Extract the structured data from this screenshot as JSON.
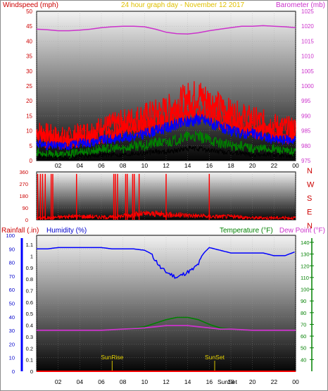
{
  "chart_data": [
    {
      "type": "line",
      "title": "24 hour graph day - November 12 2017",
      "left_label": "Windspeed (mph)",
      "right_label": "Barometer (mb)",
      "x_ticks": [
        "02",
        "04",
        "06",
        "08",
        "10",
        "12",
        "14",
        "16",
        "18",
        "20",
        "22",
        "00"
      ],
      "left_ticks": [
        "0",
        "5",
        "10",
        "15",
        "20",
        "25",
        "30",
        "35",
        "40",
        "45",
        "50"
      ],
      "right_ticks": [
        "975",
        "980",
        "985",
        "990",
        "995",
        "1000",
        "1005",
        "1010",
        "1015",
        "1020",
        "1025"
      ],
      "ylim": [
        0,
        50
      ],
      "y2lim": [
        975,
        1025
      ],
      "series": [
        {
          "color": "#ff0000",
          "axis": "left",
          "x": [
            0,
            1,
            2,
            3,
            4,
            5,
            6,
            7,
            8,
            9,
            10,
            11,
            12,
            13,
            14,
            15,
            16,
            17,
            18,
            19,
            20,
            21,
            22,
            23,
            24
          ],
          "values": [
            10,
            9,
            8,
            8,
            9,
            10,
            11,
            12,
            13,
            14,
            15,
            16,
            17,
            19,
            21,
            22,
            20,
            18,
            16,
            15,
            14,
            13,
            12,
            11,
            11
          ]
        },
        {
          "color": "#0000ff",
          "axis": "left",
          "x": [
            0,
            1,
            2,
            3,
            4,
            5,
            6,
            7,
            8,
            9,
            10,
            11,
            12,
            13,
            14,
            15,
            16,
            17,
            18,
            19,
            20,
            21,
            22,
            23,
            24
          ],
          "values": [
            6,
            5,
            5,
            5,
            6,
            6,
            7,
            7,
            8,
            8,
            9,
            10,
            11,
            12,
            13,
            14,
            13,
            11,
            10,
            9,
            9,
            8,
            7,
            7,
            7
          ]
        },
        {
          "color": "#008000",
          "axis": "left",
          "x": [
            0,
            1,
            2,
            3,
            4,
            5,
            6,
            7,
            8,
            9,
            10,
            11,
            12,
            13,
            14,
            15,
            16,
            17,
            18,
            19,
            20,
            21,
            22,
            23,
            24
          ],
          "values": [
            3,
            2,
            2,
            2,
            3,
            3,
            4,
            4,
            4,
            5,
            5,
            6,
            6,
            7,
            8,
            8,
            7,
            6,
            5,
            5,
            4,
            4,
            4,
            3,
            3
          ]
        },
        {
          "color": "#cc33cc",
          "axis": "right",
          "x": [
            0,
            1,
            2,
            3,
            4,
            5,
            6,
            7,
            8,
            9,
            10,
            11,
            12,
            13,
            14,
            15,
            16,
            17,
            18,
            19,
            20,
            21,
            22,
            23,
            24
          ],
          "values": [
            1019.0,
            1018.8,
            1018.5,
            1018.5,
            1018.7,
            1019.0,
            1019.5,
            1019.8,
            1020.0,
            1020.0,
            1019.8,
            1019.0,
            1018.0,
            1017.5,
            1017.4,
            1017.8,
            1018.5,
            1019.0,
            1019.5,
            1020.0,
            1020.0,
            1020.2,
            1020.0,
            1019.8,
            1019.5
          ]
        }
      ]
    },
    {
      "type": "bar",
      "right_labels": [
        "N",
        "W",
        "S",
        "E",
        "N"
      ],
      "left_ticks": [
        "360",
        "270",
        "180",
        "90",
        "0"
      ],
      "ylim": [
        0,
        360
      ],
      "color": "#ff0000",
      "spikes": [
        {
          "x": 0.1,
          "value": 345
        },
        {
          "x": 0.35,
          "value": 345
        },
        {
          "x": 0.55,
          "value": 345
        },
        {
          "x": 0.8,
          "value": 345
        },
        {
          "x": 1.35,
          "value": 345
        },
        {
          "x": 1.5,
          "value": 345
        },
        {
          "x": 3.7,
          "value": 345
        },
        {
          "x": 7.15,
          "value": 345
        },
        {
          "x": 7.3,
          "value": 345
        },
        {
          "x": 7.5,
          "value": 345
        },
        {
          "x": 8.25,
          "value": 345
        },
        {
          "x": 8.4,
          "value": 345
        },
        {
          "x": 8.9,
          "value": 345
        },
        {
          "x": 9.05,
          "value": 345
        },
        {
          "x": 9.5,
          "value": 345
        },
        {
          "x": 12.0,
          "value": 345
        },
        {
          "x": 16.0,
          "value": 345
        }
      ],
      "baseline": {
        "x": [
          0,
          1,
          2,
          3,
          4,
          5,
          6,
          7,
          8,
          9,
          10,
          11,
          12,
          13,
          14,
          15,
          16,
          17,
          18,
          19,
          20,
          21,
          22,
          23,
          24
        ],
        "values": [
          15,
          15,
          20,
          25,
          25,
          25,
          20,
          20,
          30,
          40,
          45,
          45,
          40,
          35,
          35,
          30,
          25,
          25,
          25,
          20,
          15,
          15,
          15,
          15,
          15
        ]
      }
    },
    {
      "type": "line",
      "left_label_a": "Rainfall (.in)",
      "left_label_b": "Humidity (%)",
      "right_label_a": "Temperature (°F)",
      "right_label_b": "Dew Point (°F)",
      "x_ticks": [
        "02",
        "04",
        "06",
        "08",
        "10",
        "12",
        "14",
        "16",
        "18",
        "20",
        "22",
        "00"
      ],
      "humidity_ticks": [
        "0",
        "10",
        "20",
        "30",
        "40",
        "50",
        "60",
        "70",
        "80",
        "90",
        "100"
      ],
      "rain_ticks": [
        "0",
        "0.1",
        "0.2",
        "0.3",
        "0.4",
        "0.5",
        "0.6",
        "0.7",
        "0.8",
        "0.9",
        "1",
        "1.1"
      ],
      "temp_ticks": [
        "40",
        "50",
        "60",
        "70",
        "80",
        "90",
        "100",
        "110",
        "120",
        "130",
        "140"
      ],
      "ylim": [
        0,
        1.2
      ],
      "humidity_lim": [
        0,
        100
      ],
      "temp_lim": [
        30,
        145
      ],
      "annotations": [
        {
          "label": "SunRise",
          "x": 7.0
        },
        {
          "label": "SunSet",
          "x": 16.5
        }
      ],
      "sunset_axis_label": "SunSet",
      "series": [
        {
          "color": "#0000ff",
          "axis": "humidity",
          "x": [
            0,
            1,
            2,
            3,
            4,
            5,
            6,
            7,
            8,
            9,
            10,
            10.5,
            11,
            11.5,
            12,
            12.5,
            13,
            13.5,
            14,
            14.5,
            15,
            15.5,
            16,
            17,
            18,
            19,
            20,
            21,
            22,
            23,
            24
          ],
          "values": [
            90,
            90,
            91,
            91,
            91,
            91,
            91,
            90,
            90,
            90,
            89,
            87,
            82,
            76,
            73,
            71,
            69,
            71,
            73,
            75,
            79,
            87,
            91,
            89,
            87,
            87,
            87,
            87,
            85,
            85,
            88
          ]
        },
        {
          "color": "#008000",
          "axis": "temperature",
          "x": [
            0,
            2,
            4,
            6,
            8,
            10,
            11,
            12,
            13,
            14,
            15,
            16,
            17,
            18,
            20,
            22,
            24
          ],
          "values": [
            65,
            65,
            65,
            65,
            66,
            68,
            71,
            74,
            76,
            76,
            74,
            70,
            67,
            66,
            65,
            65,
            65
          ]
        },
        {
          "color": "#cc33cc",
          "axis": "temperature",
          "x": [
            0,
            2,
            4,
            6,
            8,
            10,
            11,
            12,
            13,
            14,
            15,
            16,
            17,
            18,
            20,
            22,
            24
          ],
          "values": [
            65,
            65,
            65,
            65,
            66,
            67,
            68,
            69,
            69,
            69,
            68,
            67,
            66,
            66,
            65,
            65,
            65
          ]
        },
        {
          "color": "#ff0000",
          "axis": "rain",
          "x": [
            0,
            24
          ],
          "values": [
            0,
            0
          ]
        }
      ]
    }
  ]
}
